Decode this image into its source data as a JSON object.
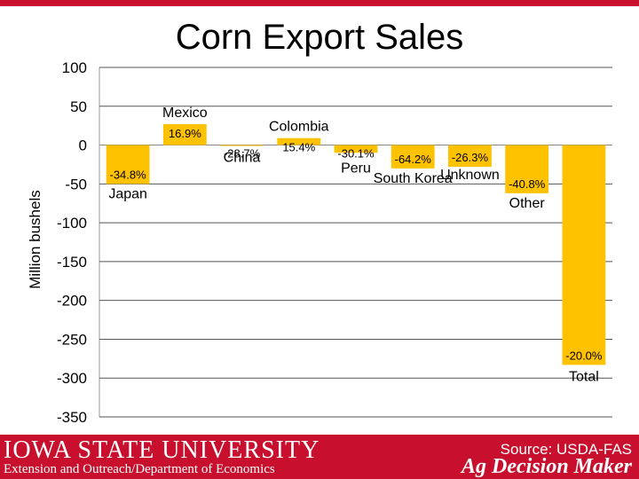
{
  "title": "Corn Export Sales",
  "chart_data": {
    "type": "bar",
    "title": "Corn Export Sales",
    "ylabel": "Million bushels",
    "xlabel": "",
    "ylim": [
      -350,
      100
    ],
    "yticks": [
      100,
      50,
      0,
      -50,
      -100,
      -150,
      -200,
      -250,
      -300,
      -350
    ],
    "grid": true,
    "categories": [
      "Japan",
      "Mexico",
      "China",
      "Colombia",
      "Peru",
      "South Korea",
      "Unknown",
      "Other",
      "Total"
    ],
    "values": [
      -50,
      27,
      -1,
      9,
      -10,
      -30,
      -28,
      -62,
      -283
    ],
    "data_labels": [
      "-34.8%",
      "16.9%",
      "-28.7%",
      "15.4%",
      "-30.1%",
      "-64.2%",
      "-26.3%",
      "-40.8%",
      "-20.0%"
    ]
  },
  "footer": {
    "university": "IOWA STATE UNIVERSITY",
    "department": "Extension and Outreach/Department of Economics",
    "source": "Source: USDA-FAS",
    "brand": "Ag Decision Maker"
  },
  "colors": {
    "bar": "#ffc200",
    "accent": "#c8102e"
  }
}
